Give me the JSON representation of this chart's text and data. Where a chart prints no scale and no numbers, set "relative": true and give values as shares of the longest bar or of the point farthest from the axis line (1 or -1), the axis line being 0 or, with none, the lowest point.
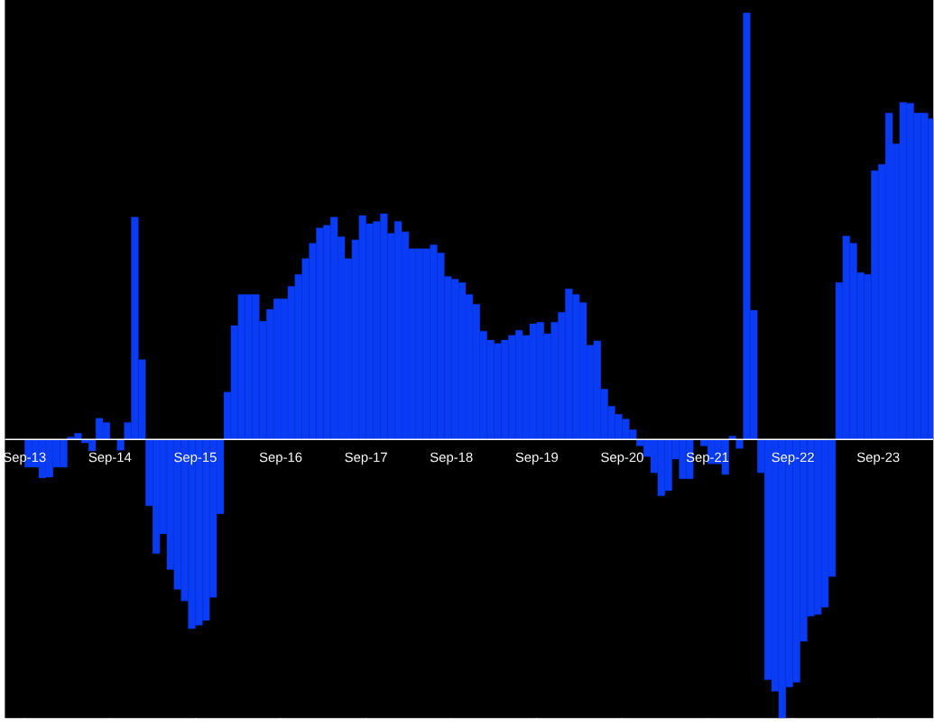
{
  "chart_data": {
    "type": "bar",
    "relative": true,
    "color": "#0a3cf5",
    "categories": [
      "Sep-13",
      null,
      null,
      null,
      null,
      null,
      null,
      null,
      null,
      null,
      null,
      null,
      "Sep-14",
      null,
      null,
      null,
      null,
      null,
      null,
      null,
      null,
      null,
      null,
      null,
      "Sep-15",
      null,
      null,
      null,
      null,
      null,
      null,
      null,
      null,
      null,
      null,
      null,
      "Sep-16",
      null,
      null,
      null,
      null,
      null,
      null,
      null,
      null,
      null,
      null,
      null,
      "Sep-17",
      null,
      null,
      null,
      null,
      null,
      null,
      null,
      null,
      null,
      null,
      null,
      "Sep-18",
      null,
      null,
      null,
      null,
      null,
      null,
      null,
      null,
      null,
      null,
      null,
      "Sep-19",
      null,
      null,
      null,
      null,
      null,
      null,
      null,
      null,
      null,
      null,
      null,
      "Sep-20",
      null,
      null,
      null,
      null,
      null,
      null,
      null,
      null,
      null,
      null,
      null,
      "Sep-21",
      null,
      null,
      null,
      null,
      null,
      null,
      null,
      null,
      null,
      null,
      null,
      "Sep-22",
      null,
      null,
      null,
      null,
      null,
      null,
      null,
      null,
      null,
      null,
      null,
      "Sep-23",
      null,
      null,
      null,
      null,
      null,
      null,
      null
    ],
    "values": [
      -0.065,
      -0.065,
      -0.09,
      -0.088,
      -0.065,
      -0.065,
      0.006,
      0.015,
      -0.008,
      -0.027,
      0.05,
      0.04,
      0,
      -0.025,
      0.04,
      0.521,
      0.187,
      -0.155,
      -0.267,
      -0.221,
      -0.305,
      -0.351,
      -0.378,
      -0.443,
      -0.435,
      -0.424,
      -0.37,
      -0.174,
      0.111,
      0.267,
      0.34,
      0.34,
      0.34,
      0.277,
      0.305,
      0.33,
      0.33,
      0.359,
      0.387,
      0.424,
      0.46,
      0.496,
      0.502,
      0.521,
      0.475,
      0.424,
      0.468,
      0.525,
      0.506,
      0.511,
      0.529,
      0.483,
      0.511,
      0.487,
      0.447,
      0.447,
      0.447,
      0.456,
      0.437,
      0.382,
      0.376,
      0.368,
      0.34,
      0.317,
      0.254,
      0.233,
      0.225,
      0.233,
      0.244,
      0.256,
      0.244,
      0.271,
      0.275,
      0.248,
      0.275,
      0.298,
      0.353,
      0.34,
      0.321,
      0.221,
      0.231,
      0.118,
      0.078,
      0.059,
      0.048,
      0.023,
      -0.015,
      -0.04,
      -0.078,
      -0.132,
      -0.12,
      -0.046,
      -0.092,
      -0.092,
      0,
      -0.015,
      -0.057,
      -0.057,
      -0.082,
      0.008,
      -0.021,
      1,
      0.303,
      -0.078,
      -0.563,
      -0.59,
      -0.653,
      -0.58,
      -0.569,
      -0.473,
      -0.414,
      -0.41,
      -0.393,
      -0.321,
      0.368,
      0.477,
      0.46,
      0.391,
      0.387,
      0.63,
      0.645,
      0.765,
      0.693,
      0.79,
      0.788,
      0.765,
      0.765,
      0.752
    ]
  }
}
